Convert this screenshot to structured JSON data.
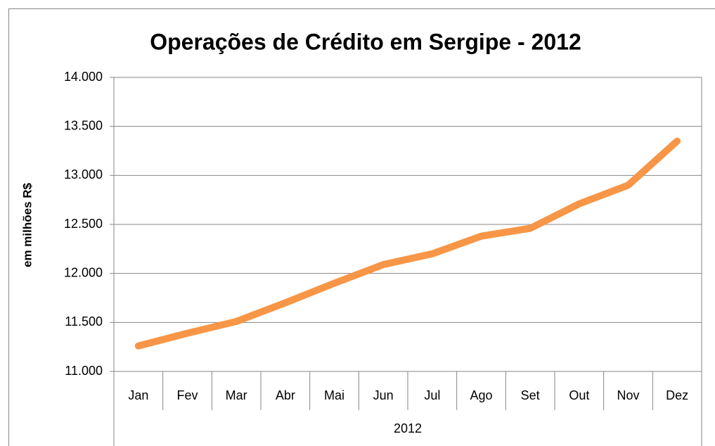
{
  "chart_data": {
    "type": "line",
    "title": "Operações de Crédito em Sergipe - 2012",
    "ylabel": "em milhões R$",
    "xlabel": "2012",
    "categories": [
      "Jan",
      "Fev",
      "Mar",
      "Abr",
      "Mai",
      "Jun",
      "Jul",
      "Ago",
      "Set",
      "Out",
      "Nov",
      "Dez"
    ],
    "values": [
      11260,
      11390,
      11510,
      11700,
      11900,
      12090,
      12200,
      12380,
      12460,
      12710,
      12900,
      13350
    ],
    "color": "#f79646",
    "ylim": [
      11000,
      14000
    ],
    "yticks": [
      {
        "value": 11000,
        "label": "11.000"
      },
      {
        "value": 11500,
        "label": "11.500"
      },
      {
        "value": 12000,
        "label": "12.000"
      },
      {
        "value": 12500,
        "label": "12.500"
      },
      {
        "value": 13000,
        "label": "13.000"
      },
      {
        "value": 13500,
        "label": "13.500"
      },
      {
        "value": 14000,
        "label": "14.000"
      }
    ],
    "grid": true
  }
}
